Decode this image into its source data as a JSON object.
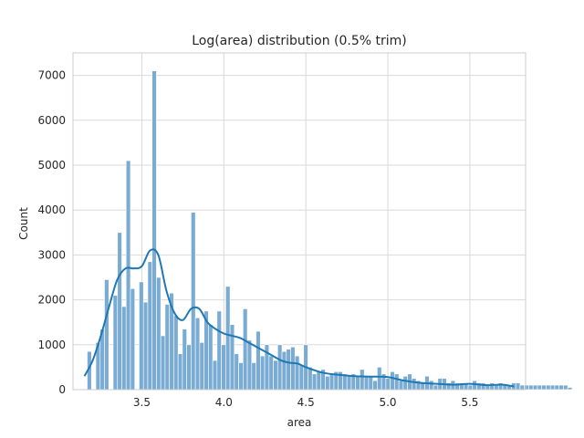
{
  "chart_data": {
    "type": "bar",
    "title": "Log(area) distribution (0.5% trim)",
    "xlabel": "area",
    "ylabel": "Count",
    "xlim": [
      3.08,
      5.84
    ],
    "ylim": [
      0,
      7500
    ],
    "xticks": [
      3.5,
      4.0,
      4.5,
      5.0,
      5.5
    ],
    "xtick_labels": [
      "3.5",
      "4.0",
      "4.5",
      "5.0",
      "5.5"
    ],
    "yticks": [
      0,
      1000,
      2000,
      3000,
      4000,
      5000,
      6000,
      7000
    ],
    "ytick_labels": [
      "0",
      "1000",
      "2000",
      "3000",
      "4000",
      "5000",
      "6000",
      "7000"
    ],
    "grid": true,
    "colors": {
      "bar": "#7aacd3",
      "kde": "#1f77b4",
      "grid": "#d9d9d9",
      "spine": "#cccccc"
    },
    "bin_start": 3.14,
    "bin_width": 0.0264,
    "values": [
      0,
      850,
      0,
      1050,
      1350,
      2450,
      0,
      2100,
      3500,
      1850,
      5100,
      2250,
      0,
      2400,
      1950,
      2850,
      7100,
      2500,
      1200,
      1900,
      2150,
      1650,
      800,
      1350,
      1000,
      3950,
      1600,
      1050,
      1750,
      1450,
      650,
      1750,
      1000,
      2300,
      1450,
      800,
      600,
      1800,
      1100,
      600,
      1300,
      750,
      1000,
      750,
      650,
      1000,
      850,
      900,
      950,
      750,
      550,
      1000,
      500,
      350,
      400,
      450,
      300,
      350,
      400,
      400,
      350,
      300,
      350,
      300,
      450,
      300,
      300,
      200,
      500,
      350,
      250,
      400,
      350,
      200,
      300,
      350,
      250,
      200,
      150,
      300,
      200,
      100,
      250,
      250,
      150,
      200,
      150,
      150,
      150,
      100,
      200,
      150,
      150,
      100,
      150,
      100,
      150,
      100,
      100,
      150,
      150,
      100,
      100,
      100,
      100,
      100,
      100,
      100,
      100,
      100,
      100,
      100,
      50
    ],
    "kde": {
      "x": [
        3.15,
        3.2,
        3.25,
        3.3,
        3.35,
        3.4,
        3.45,
        3.5,
        3.55,
        3.6,
        3.65,
        3.7,
        3.75,
        3.8,
        3.85,
        3.9,
        3.95,
        4.0,
        4.05,
        4.1,
        4.15,
        4.2,
        4.25,
        4.3,
        4.35,
        4.4,
        4.45,
        4.5,
        4.6,
        4.7,
        4.8,
        4.9,
        5.0,
        5.1,
        5.2,
        5.3,
        5.4,
        5.5,
        5.6,
        5.7,
        5.77
      ],
      "y": [
        300,
        650,
        1200,
        1850,
        2450,
        2700,
        2700,
        2750,
        3100,
        3000,
        2200,
        1700,
        1550,
        1800,
        1800,
        1500,
        1350,
        1250,
        1200,
        1150,
        1050,
        950,
        850,
        750,
        650,
        600,
        580,
        500,
        380,
        330,
        300,
        290,
        280,
        200,
        150,
        130,
        110,
        130,
        100,
        110,
        70
      ]
    }
  }
}
